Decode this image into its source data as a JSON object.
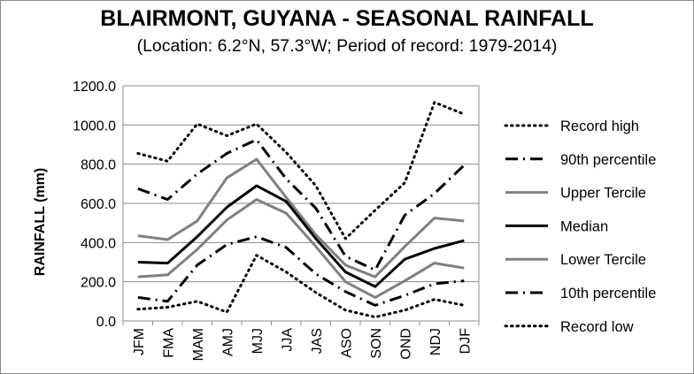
{
  "chart_data": {
    "type": "line",
    "title": "BLAIRMONT, GUYANA - SEASONAL RAINFALL",
    "subtitle": "(Location: 6.2°N, 57.3°W; Period of record: 1979-2014)",
    "ylabel": "RAINFALL (mm)",
    "xlabel": "",
    "ylim": [
      0,
      1200
    ],
    "y_ticks": [
      "0.0",
      "200.0",
      "400.0",
      "600.0",
      "800.0",
      "1000.0",
      "1200.0"
    ],
    "grid": true,
    "legend_position": "right",
    "categories": [
      "JFM",
      "FMA",
      "MAM",
      "AMJ",
      "MJJ",
      "JJA",
      "JAS",
      "ASO",
      "SON",
      "OND",
      "NDJ",
      "DJF"
    ],
    "series": [
      {
        "name": "Record high",
        "style": "dotted",
        "color": "#000000",
        "values": [
          855,
          815,
          1005,
          945,
          1005,
          860,
          690,
          420,
          565,
          705,
          1115,
          1055
        ]
      },
      {
        "name": "90th percentile",
        "style": "dashdot",
        "color": "#000000",
        "values": [
          675,
          620,
          750,
          855,
          925,
          725,
          575,
          330,
          260,
          540,
          650,
          795
        ]
      },
      {
        "name": "Upper Tercile",
        "style": "solid",
        "color": "#808080",
        "values": [
          435,
          415,
          510,
          730,
          825,
          630,
          440,
          285,
          225,
          380,
          525,
          510
        ]
      },
      {
        "name": "Median",
        "style": "solid",
        "color": "#000000",
        "values": [
          300,
          295,
          430,
          580,
          690,
          610,
          420,
          250,
          175,
          315,
          370,
          410
        ]
      },
      {
        "name": "Lower Tercile",
        "style": "solid",
        "color": "#808080",
        "values": [
          225,
          235,
          365,
          515,
          620,
          550,
          380,
          200,
          120,
          205,
          295,
          270
        ]
      },
      {
        "name": "10th percentile",
        "style": "dashdot",
        "color": "#000000",
        "values": [
          120,
          100,
          285,
          390,
          430,
          375,
          240,
          150,
          80,
          130,
          190,
          205
        ]
      },
      {
        "name": "Record low",
        "style": "dotted",
        "color": "#000000",
        "values": [
          60,
          70,
          100,
          45,
          335,
          250,
          145,
          55,
          20,
          55,
          110,
          80
        ]
      }
    ]
  }
}
